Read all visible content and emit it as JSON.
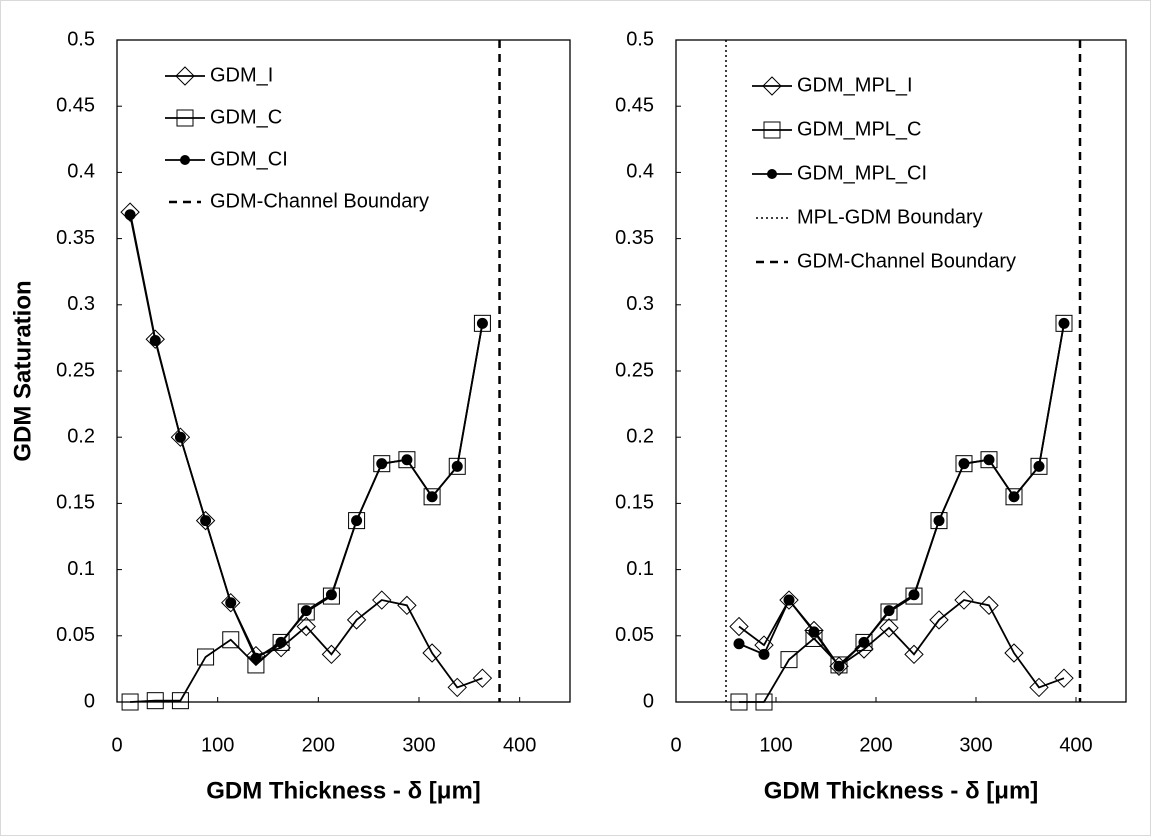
{
  "chart_data": [
    {
      "type": "line",
      "x_label": "GDM Thickness - δ [μm]",
      "y_label": "GDM Saturation",
      "x": [
        13,
        38,
        63,
        88,
        113,
        138,
        163,
        188,
        213,
        238,
        263,
        288,
        313,
        338,
        363
      ],
      "series": [
        {
          "name": "GDM_I",
          "color": "#000000",
          "marker": "diamond",
          "values": [
            0.37,
            0.274,
            0.2,
            0.137,
            0.075,
            0.035,
            0.041,
            0.057,
            0.036,
            0.062,
            0.077,
            0.073,
            0.037,
            0.011,
            0.018
          ]
        },
        {
          "name": "GDM_C",
          "color": "#000000",
          "marker": "square",
          "values": [
            0,
            0.001,
            0.001,
            0.034,
            0.047,
            0.028,
            0.045,
            0.068,
            0.08,
            0.137,
            0.18,
            0.183,
            0.155,
            0.178,
            0.286
          ]
        },
        {
          "name": "GDM_CI",
          "color": "#000000",
          "marker": "circle",
          "values": [
            0.368,
            0.273,
            0.2,
            0.137,
            0.075,
            0.033,
            0.045,
            0.069,
            0.081,
            0.137,
            0.18,
            0.183,
            0.155,
            0.178,
            0.286
          ]
        }
      ],
      "vlines": [
        {
          "name": "GDM-Channel Boundary",
          "x": 380,
          "style": "dashed"
        }
      ],
      "xlim": [
        0,
        450
      ],
      "xticks": [
        0,
        100,
        200,
        300,
        400
      ],
      "ylim": [
        0,
        0.5
      ],
      "yticks": [
        0,
        0.05,
        0.1,
        0.15,
        0.2,
        0.25,
        0.3,
        0.35,
        0.4,
        0.45,
        0.5
      ]
    },
    {
      "type": "line",
      "x_label": "GDM Thickness - δ [μm]",
      "x": [
        63,
        88,
        113,
        138,
        163,
        188,
        213,
        238,
        263,
        288,
        313,
        338,
        363,
        388
      ],
      "series": [
        {
          "name": "GDM_MPL_I",
          "color": "#000000",
          "marker": "diamond",
          "values": [
            0.057,
            0.043,
            0.077,
            0.054,
            0.027,
            0.04,
            0.056,
            0.036,
            0.062,
            0.077,
            0.073,
            0.037,
            0.011,
            0.018
          ]
        },
        {
          "name": "GDM_MPL_C",
          "color": "#000000",
          "marker": "square",
          "values": [
            0,
            0,
            0.032,
            0.048,
            0.028,
            0.045,
            0.068,
            0.08,
            0.137,
            0.18,
            0.183,
            0.155,
            0.178,
            0.286
          ]
        },
        {
          "name": "GDM_MPL_CI",
          "color": "#000000",
          "marker": "circle",
          "values": [
            0.044,
            0.036,
            0.077,
            0.053,
            0.027,
            0.045,
            0.069,
            0.081,
            0.137,
            0.18,
            0.183,
            0.155,
            0.178,
            0.286
          ]
        }
      ],
      "vlines": [
        {
          "name": "MPL-GDM Boundary",
          "x": 50,
          "style": "dotted"
        },
        {
          "name": "GDM-Channel Boundary",
          "x": 404,
          "style": "dashed"
        }
      ],
      "xlim": [
        0,
        450
      ],
      "xticks": [
        0,
        100,
        200,
        300,
        400
      ],
      "ylim": [
        0,
        0.5
      ],
      "yticks": [
        0,
        0.05,
        0.1,
        0.15,
        0.2,
        0.25,
        0.3,
        0.35,
        0.4,
        0.45,
        0.5
      ]
    }
  ]
}
